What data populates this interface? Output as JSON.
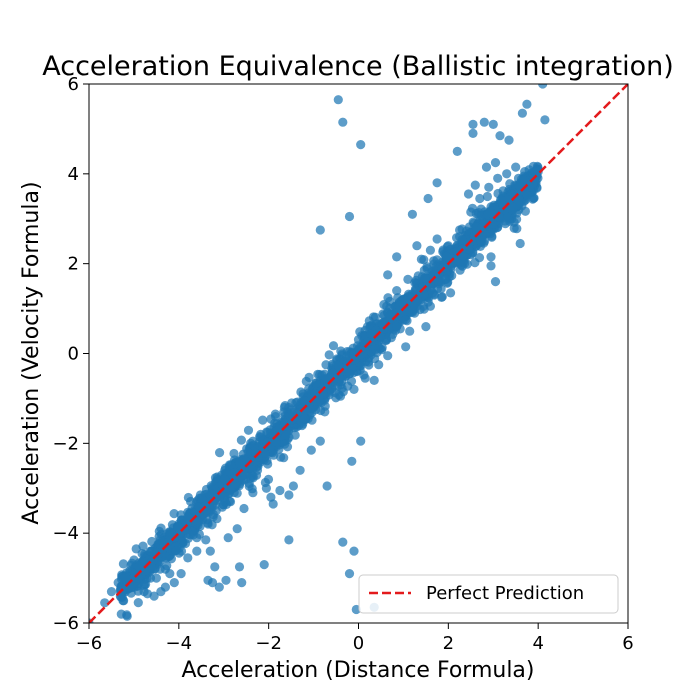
{
  "chart_data": {
    "type": "scatter",
    "title": "Acceleration Equivalence (Ballistic integration)",
    "xlabel": "Acceleration (Distance Formula)",
    "ylabel": "Acceleration (Velocity Formula)",
    "xlim": [
      -6,
      6
    ],
    "ylim": [
      -6,
      6
    ],
    "xticks": [
      "−6",
      "−4",
      "−2",
      "0",
      "2",
      "4",
      "6"
    ],
    "yticks": [
      "−6",
      "−4",
      "−2",
      "0",
      "2",
      "4",
      "6"
    ],
    "grid": false,
    "legend": {
      "placement": "bottom-right",
      "entries": [
        "Perfect Prediction"
      ]
    },
    "colors": {
      "points": "#1f77b4",
      "reference_line": "#e31a1c"
    },
    "series": [
      {
        "kind": "points",
        "points": [
          [
            -6.0,
            -6.0
          ],
          [
            -5.15,
            -5.85
          ],
          [
            -5.0,
            -5.1
          ],
          [
            -4.9,
            -5.0
          ],
          [
            -4.75,
            -4.85
          ],
          [
            -4.6,
            -4.8
          ],
          [
            -4.7,
            -5.35
          ],
          [
            -4.55,
            -5.4
          ],
          [
            -4.4,
            -5.3
          ],
          [
            -4.5,
            -5.0
          ],
          [
            -4.3,
            -4.8
          ],
          [
            -4.2,
            -4.9
          ],
          [
            -4.1,
            -5.1
          ],
          [
            -4.3,
            -5.2
          ],
          [
            -3.95,
            -4.9
          ],
          [
            -3.8,
            -4.55
          ],
          [
            -3.6,
            -4.4
          ],
          [
            -3.4,
            -4.15
          ],
          [
            -3.3,
            -4.4
          ],
          [
            -3.2,
            -4.75
          ],
          [
            -3.25,
            -5.1
          ],
          [
            -3.1,
            -5.2
          ],
          [
            -2.95,
            -5.05
          ],
          [
            -2.65,
            -4.75
          ],
          [
            -2.9,
            -4.1
          ],
          [
            -2.7,
            -3.9
          ],
          [
            -2.55,
            -3.45
          ],
          [
            -2.85,
            -3.3
          ],
          [
            -2.35,
            -3.1
          ],
          [
            -2.05,
            -3.0
          ],
          [
            -1.95,
            -3.2
          ],
          [
            -1.9,
            -3.35
          ],
          [
            -1.75,
            -3.05
          ],
          [
            -1.55,
            -3.15
          ],
          [
            -1.45,
            -2.95
          ],
          [
            -1.3,
            -2.6
          ],
          [
            -2.4,
            -2.0
          ],
          [
            -2.2,
            -1.85
          ],
          [
            -1.85,
            -1.35
          ],
          [
            -1.65,
            -1.2
          ],
          [
            -1.2,
            -1.45
          ],
          [
            -0.95,
            -1.25
          ],
          [
            -1.05,
            -2.15
          ],
          [
            -0.85,
            -1.95
          ],
          [
            -0.75,
            -1.3
          ],
          [
            -0.4,
            -0.95
          ],
          [
            -0.2,
            -0.45
          ],
          [
            -0.1,
            -0.8
          ],
          [
            0.15,
            -0.55
          ],
          [
            0.35,
            -0.6
          ],
          [
            -0.15,
            -2.4
          ],
          [
            0.05,
            -1.95
          ],
          [
            -0.7,
            -2.95
          ],
          [
            -0.1,
            -4.4
          ],
          [
            -0.35,
            -4.2
          ],
          [
            -0.2,
            -4.9
          ],
          [
            0.35,
            -5.65
          ],
          [
            -0.05,
            -5.7
          ],
          [
            -2.1,
            -4.7
          ],
          [
            -2.6,
            -5.1
          ],
          [
            -1.55,
            -4.15
          ],
          [
            -3.35,
            -5.05
          ],
          [
            -3.6,
            -4.1
          ],
          [
            -4.95,
            -4.35
          ],
          [
            -5.0,
            -5.2
          ],
          [
            -0.1,
            -0.05
          ],
          [
            0.2,
            0.25
          ],
          [
            0.45,
            0.45
          ],
          [
            0.65,
            0.9
          ],
          [
            0.85,
            0.6
          ],
          [
            1.05,
            0.75
          ],
          [
            1.25,
            1.0
          ],
          [
            1.45,
            1.05
          ],
          [
            1.65,
            1.35
          ],
          [
            1.85,
            1.25
          ],
          [
            0.85,
            1.4
          ],
          [
            1.1,
            1.65
          ],
          [
            1.4,
            2.1
          ],
          [
            0.65,
            1.75
          ],
          [
            0.85,
            2.15
          ],
          [
            1.3,
            2.4
          ],
          [
            1.6,
            2.3
          ],
          [
            1.75,
            2.55
          ],
          [
            2.0,
            2.4
          ],
          [
            2.25,
            2.75
          ],
          [
            2.5,
            3.15
          ],
          [
            2.7,
            3.45
          ],
          [
            2.9,
            3.7
          ],
          [
            3.1,
            3.9
          ],
          [
            3.3,
            4.0
          ],
          [
            3.5,
            4.15
          ],
          [
            3.7,
            4.05
          ],
          [
            3.45,
            3.25
          ],
          [
            3.6,
            2.45
          ],
          [
            2.35,
            2.15
          ],
          [
            2.95,
            2.15
          ],
          [
            2.95,
            1.95
          ],
          [
            3.05,
            1.6
          ],
          [
            1.6,
            1.05
          ],
          [
            1.5,
            0.6
          ],
          [
            1.95,
            1.65
          ],
          [
            2.05,
            1.35
          ],
          [
            1.05,
            0.15
          ],
          [
            0.45,
            -0.25
          ],
          [
            0.65,
            -0.05
          ],
          [
            1.2,
            3.1
          ],
          [
            1.55,
            3.45
          ],
          [
            2.45,
            3.55
          ],
          [
            2.6,
            3.75
          ],
          [
            2.85,
            4.15
          ],
          [
            3.05,
            4.25
          ],
          [
            3.0,
            5.1
          ],
          [
            2.55,
            5.1
          ],
          [
            2.8,
            5.15
          ],
          [
            3.15,
            4.85
          ],
          [
            3.35,
            4.75
          ],
          [
            3.75,
            5.55
          ],
          [
            4.15,
            5.2
          ],
          [
            3.65,
            5.35
          ],
          [
            4.1,
            6.0
          ],
          [
            -0.45,
            5.65
          ],
          [
            -0.35,
            5.15
          ],
          [
            0.05,
            4.65
          ],
          [
            -0.2,
            3.05
          ],
          [
            -0.85,
            2.75
          ],
          [
            1.75,
            3.8
          ],
          [
            2.2,
            4.5
          ],
          [
            2.55,
            4.9
          ],
          [
            -5.65,
            -5.55
          ],
          [
            -5.3,
            -5.4
          ],
          [
            -5.5,
            -5.3
          ],
          [
            -5.35,
            -5.1
          ],
          [
            4.0,
            4.05
          ],
          [
            3.9,
            3.9
          ],
          [
            3.8,
            3.7
          ]
        ],
        "dense_band": {
          "x_range": [
            -5.3,
            4.0
          ],
          "slope": 1.0,
          "intercept": 0.0,
          "spread": 0.5
        }
      }
    ],
    "reference_line": {
      "label": "Perfect Prediction",
      "x": [
        -6,
        6
      ],
      "y": [
        -6,
        6
      ],
      "style": "dashed"
    }
  }
}
